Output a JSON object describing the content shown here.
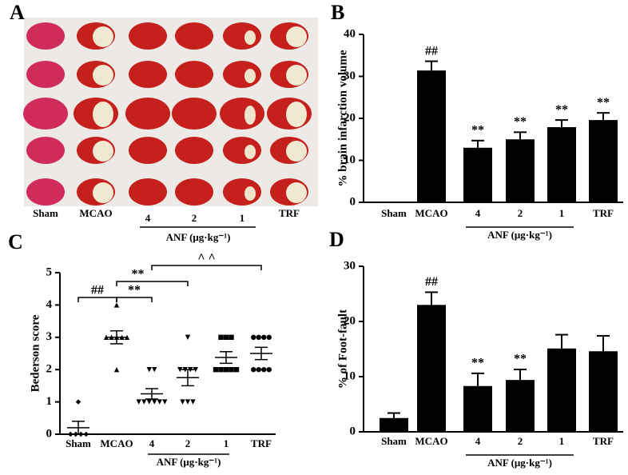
{
  "panel_a": {
    "label": "A",
    "columns": [
      "Sham",
      "MCAO",
      "4",
      "2",
      "1",
      "TRF"
    ],
    "group_label": "ANF (μg·kg⁻¹)"
  },
  "chart_data": [
    {
      "type": "bar",
      "panel_label": "B",
      "y_label": "% brain infarction volume",
      "categories": [
        "Sham",
        "MCAO",
        "4",
        "2",
        "1",
        "TRF"
      ],
      "values": [
        0,
        31.4,
        13,
        15,
        17.9,
        19.6
      ],
      "errors": [
        null,
        2.2,
        1.7,
        1.7,
        1.7,
        1.7
      ],
      "annotations": [
        null,
        "##",
        "**",
        "**",
        "**",
        "**"
      ],
      "group_label": "ANF (μg·kg⁻¹)",
      "color": "#000000",
      "ylim": [
        0,
        40
      ],
      "yticks": [
        0,
        10,
        20,
        30,
        40
      ]
    },
    {
      "type": "dot",
      "panel_label": "C",
      "y_label": "Bederson  score",
      "categories": [
        "Sham",
        "MCAO",
        "4",
        "2",
        "1",
        "TRF"
      ],
      "points": [
        [
          1,
          0,
          0,
          0,
          0
        ],
        [
          4,
          3,
          3,
          3,
          3,
          3,
          2
        ],
        [
          2,
          2,
          1,
          1,
          1,
          1,
          1,
          1
        ],
        [
          3,
          2,
          2,
          2,
          2,
          1,
          1,
          1
        ],
        [
          3,
          3,
          3,
          2,
          2,
          2,
          2,
          2
        ],
        [
          3,
          3,
          3,
          3,
          2,
          2,
          2,
          2
        ]
      ],
      "means": [
        0.2,
        3.0,
        1.25,
        1.75,
        2.375,
        2.5
      ],
      "sems": [
        0.2,
        0.2,
        0.16,
        0.25,
        0.18,
        0.19
      ],
      "markers": [
        "diamond",
        "triangle-up",
        "triangle-down",
        "triangle-down",
        "square",
        "circle"
      ],
      "comparisons": [
        "##",
        "**",
        "**",
        "^ ^"
      ],
      "group_label": "ANF (μg·kg⁻¹)",
      "color": "#000000",
      "ylim": [
        0,
        5
      ],
      "yticks": [
        0,
        1,
        2,
        3,
        4,
        5
      ]
    },
    {
      "type": "bar",
      "panel_label": "D",
      "y_label": "% of  Foot-fault",
      "categories": [
        "Sham",
        "MCAO",
        "4",
        "2",
        "1",
        "TRF"
      ],
      "values": [
        2.5,
        23,
        8.3,
        9.4,
        15.1,
        14.6
      ],
      "errors": [
        0.9,
        2.3,
        2.3,
        1.9,
        2.5,
        2.8
      ],
      "annotations": [
        null,
        "##",
        "**",
        "**",
        null,
        null
      ],
      "group_label": "ANF (μg·kg⁻¹)",
      "color": "#000000",
      "ylim": [
        0,
        30
      ],
      "yticks": [
        0,
        10,
        20,
        30
      ]
    }
  ]
}
